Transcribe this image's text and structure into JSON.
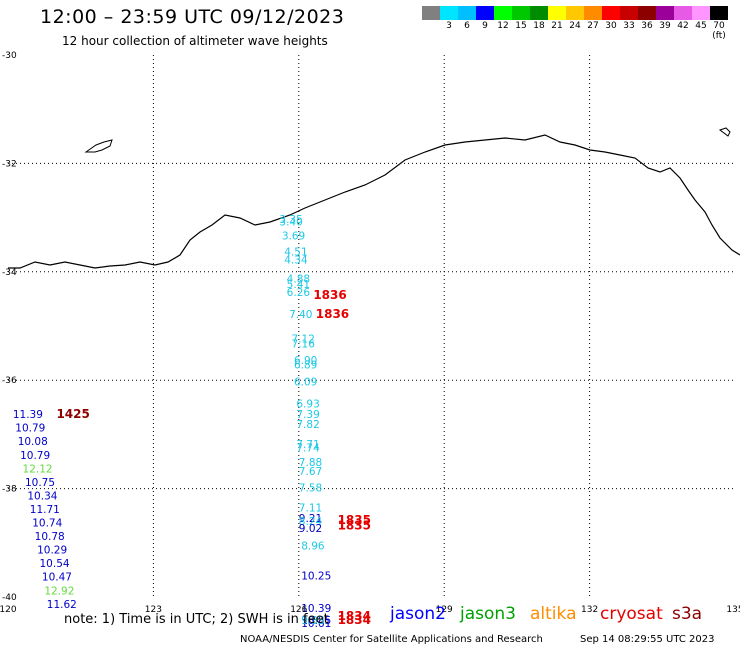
{
  "header": {
    "title": "12:00 – 23:59 UTC 09/12/2023",
    "subtitle": "12 hour collection of altimeter wave heights"
  },
  "legend": {
    "colors": [
      "#808080",
      "#00e5ff",
      "#00bfff",
      "#0000ff",
      "#00ff00",
      "#00c800",
      "#008c00",
      "#ffff00",
      "#ffc800",
      "#ff8c00",
      "#ff0000",
      "#c80000",
      "#8c0000",
      "#9b009b",
      "#e65ae6",
      "#ff96ff",
      "#000000"
    ],
    "labels": [
      "",
      "3",
      "6",
      "9",
      "12",
      "15",
      "18",
      "21",
      "24",
      "27",
      "30",
      "33",
      "36",
      "39",
      "42",
      "45",
      "70 (ft)"
    ]
  },
  "map": {
    "lon_ticks": [
      "120",
      "123",
      "126",
      "129",
      "132",
      "135"
    ],
    "lat_ticks": [
      "-30",
      "-32",
      "-34",
      "-36",
      "-38",
      "-40"
    ],
    "grid": true,
    "coast_color": "#000000"
  },
  "tracks": [
    {
      "lon": 125.6,
      "lat": -33.1,
      "value": "3.35",
      "color": "#1ec8e6"
    },
    {
      "lon": 125.6,
      "lat": -33.15,
      "value": "3.40",
      "color": "#1ec8e6"
    },
    {
      "lon": 125.65,
      "lat": -33.4,
      "value": "3.69",
      "color": "#1ec8e6"
    },
    {
      "lon": 125.7,
      "lat": -33.7,
      "value": "4.51",
      "color": "#1ec8e6"
    },
    {
      "lon": 125.7,
      "lat": -33.85,
      "value": "4.34",
      "color": "#1ec8e6"
    },
    {
      "lon": 125.75,
      "lat": -34.2,
      "value": "4.88",
      "color": "#1ec8e6"
    },
    {
      "lon": 125.75,
      "lat": -34.3,
      "value": "5.41",
      "color": "#1ec8e6"
    },
    {
      "lon": 125.75,
      "lat": -34.45,
      "value": "6.26",
      "color": "#1ec8e6"
    },
    {
      "lon": 125.8,
      "lat": -34.85,
      "value": "7.40",
      "color": "#1ec8e6"
    },
    {
      "lon": 125.85,
      "lat": -35.3,
      "value": "7.12",
      "color": "#1ec8e6"
    },
    {
      "lon": 125.85,
      "lat": -35.4,
      "value": "7.16",
      "color": "#1ec8e6"
    },
    {
      "lon": 125.9,
      "lat": -35.7,
      "value": "6.90",
      "color": "#1ec8e6"
    },
    {
      "lon": 125.9,
      "lat": -35.78,
      "value": "6.89",
      "color": "#1ec8e6"
    },
    {
      "lon": 125.9,
      "lat": -36.1,
      "value": "6.09",
      "color": "#1ec8e6"
    },
    {
      "lon": 125.95,
      "lat": -36.5,
      "value": "6.93",
      "color": "#1ec8e6"
    },
    {
      "lon": 125.95,
      "lat": -36.7,
      "value": "7.39",
      "color": "#1ec8e6"
    },
    {
      "lon": 125.95,
      "lat": -36.88,
      "value": "7.82",
      "color": "#1ec8e6"
    },
    {
      "lon": 125.95,
      "lat": -37.25,
      "value": "7.71",
      "color": "#1ec8e6"
    },
    {
      "lon": 125.95,
      "lat": -37.32,
      "value": "7.74",
      "color": "#1ec8e6"
    },
    {
      "lon": 126.0,
      "lat": -37.58,
      "value": "7.88",
      "color": "#1ec8e6"
    },
    {
      "lon": 126.0,
      "lat": -37.75,
      "value": "7.67",
      "color": "#1ec8e6"
    },
    {
      "lon": 126.0,
      "lat": -38.05,
      "value": "7.58",
      "color": "#1ec8e6"
    },
    {
      "lon": 126.0,
      "lat": -38.42,
      "value": "7.11",
      "color": "#1ec8e6"
    },
    {
      "lon": 126.0,
      "lat": -38.62,
      "value": "9.21",
      "color": "#0000c8"
    },
    {
      "lon": 126.0,
      "lat": -38.67,
      "value": "8.24",
      "color": "#1ec8e6"
    },
    {
      "lon": 126.0,
      "lat": -38.8,
      "value": "9.02",
      "color": "#0000c8"
    },
    {
      "lon": 126.05,
      "lat": -39.12,
      "value": "8.96",
      "color": "#1ec8e6"
    },
    {
      "lon": 126.05,
      "lat": -39.68,
      "value": "10.25",
      "color": "#0000c8"
    },
    {
      "lon": 126.05,
      "lat": -40.28,
      "value": "10.39",
      "color": "#0000c8"
    },
    {
      "lon": 126.05,
      "lat": -40.5,
      "value": "10.85",
      "color": "#0000c8"
    },
    {
      "lon": 126.05,
      "lat": -40.55,
      "value": "10.61",
      "color": "#0000c8"
    },
    {
      "lon": 126.05,
      "lat": -40.5,
      "value": "9.33",
      "color": "#1ec8e6"
    },
    {
      "lon": 120.1,
      "lat": -36.7,
      "value": "11.39",
      "color": "#0000c8"
    },
    {
      "lon": 120.15,
      "lat": -36.95,
      "value": "10.79",
      "color": "#0000c8"
    },
    {
      "lon": 120.2,
      "lat": -37.2,
      "value": "10.08",
      "color": "#0000c8"
    },
    {
      "lon": 120.25,
      "lat": -37.45,
      "value": "10.79",
      "color": "#0000c8"
    },
    {
      "lon": 120.3,
      "lat": -37.7,
      "value": "12.12",
      "color": "#64dc3c"
    },
    {
      "lon": 120.35,
      "lat": -37.95,
      "value": "10.75",
      "color": "#0000c8"
    },
    {
      "lon": 120.4,
      "lat": -38.2,
      "value": "10.34",
      "color": "#0000c8"
    },
    {
      "lon": 120.45,
      "lat": -38.45,
      "value": "11.71",
      "color": "#0000c8"
    },
    {
      "lon": 120.5,
      "lat": -38.7,
      "value": "10.74",
      "color": "#0000c8"
    },
    {
      "lon": 120.55,
      "lat": -38.95,
      "value": "10.78",
      "color": "#0000c8"
    },
    {
      "lon": 120.6,
      "lat": -39.2,
      "value": "10.29",
      "color": "#0000c8"
    },
    {
      "lon": 120.65,
      "lat": -39.45,
      "value": "10.54",
      "color": "#0000c8"
    },
    {
      "lon": 120.7,
      "lat": -39.7,
      "value": "10.47",
      "color": "#0000c8"
    },
    {
      "lon": 120.75,
      "lat": -39.95,
      "value": "12.92",
      "color": "#64dc3c"
    },
    {
      "lon": 120.8,
      "lat": -40.2,
      "value": "11.62",
      "color": "#0000c8"
    }
  ],
  "times": [
    {
      "lon": 126.3,
      "lat": -34.5,
      "value": "1836",
      "color": "#e60000"
    },
    {
      "lon": 126.35,
      "lat": -34.85,
      "value": "1836",
      "color": "#e60000"
    },
    {
      "lon": 121.0,
      "lat": -36.7,
      "value": "1425",
      "color": "#8c0000"
    },
    {
      "lon": 126.8,
      "lat": -38.65,
      "value": "1835",
      "color": "#e60000"
    },
    {
      "lon": 126.8,
      "lat": -38.75,
      "value": "1835",
      "color": "#e60000"
    },
    {
      "lon": 126.8,
      "lat": -40.42,
      "value": "1834",
      "color": "#e60000"
    },
    {
      "lon": 126.8,
      "lat": -40.5,
      "value": "1834",
      "color": "#e60000"
    }
  ],
  "footer": {
    "note": "note:  1) Time is in UTC;  2) SWH is in feet",
    "credit": "NOAA/NESDIS Center for Satellite Applications and Research",
    "timestamp": "Sep 14 08:29:55 UTC 2023"
  },
  "satellites": [
    {
      "name": "jason2",
      "color": "#0000ff"
    },
    {
      "name": "jason3",
      "color": "#00a000"
    },
    {
      "name": "altika",
      "color": "#ff8c00"
    },
    {
      "name": "cryosat",
      "color": "#e60000"
    },
    {
      "name": "s3a",
      "color": "#8c0000"
    }
  ]
}
